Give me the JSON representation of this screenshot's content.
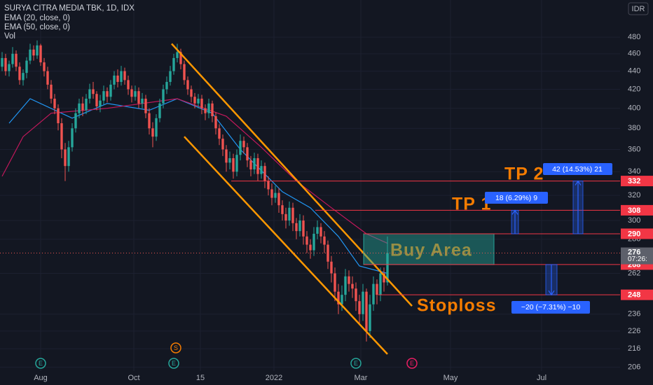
{
  "chart_data": {
    "type": "candlestick",
    "title": "SURYA CITRA MEDIA TBK, 1D, IDX",
    "currency": "IDR",
    "volume_label": "Vol",
    "up_color": "#26a69a",
    "down_color": "#ef5350",
    "log": true,
    "grid": true,
    "xlim": [
      -0.6,
      176.4
    ],
    "xticks": [
      {
        "value": 11,
        "label": "Aug"
      },
      {
        "value": 37.6,
        "label": "Oct"
      },
      {
        "value": 56.6,
        "label": "15"
      },
      {
        "value": 77.6,
        "label": "2022"
      },
      {
        "value": 102.4,
        "label": "Mar"
      },
      {
        "value": 128,
        "label": "May"
      },
      {
        "value": 154,
        "label": "Jul"
      }
    ],
    "ylim": [
      204,
      528
    ],
    "yticks": [
      206,
      216,
      226,
      236,
      262,
      286,
      300,
      320,
      340,
      360,
      380,
      400,
      420,
      440,
      460,
      480
    ],
    "ohlc": [
      [
        445,
        462,
        440,
        455
      ],
      [
        455,
        460,
        435,
        440
      ],
      [
        440,
        452,
        434,
        448
      ],
      [
        448,
        468,
        444,
        460
      ],
      [
        460,
        464,
        440,
        445
      ],
      [
        445,
        450,
        425,
        430
      ],
      [
        430,
        442,
        424,
        438
      ],
      [
        438,
        456,
        432,
        452
      ],
      [
        452,
        472,
        448,
        465
      ],
      [
        465,
        470,
        452,
        458
      ],
      [
        458,
        476,
        454,
        470
      ],
      [
        470,
        472,
        446,
        450
      ],
      [
        450,
        455,
        434,
        440
      ],
      [
        440,
        445,
        420,
        425
      ],
      [
        425,
        430,
        405,
        410
      ],
      [
        410,
        415,
        394,
        400
      ],
      [
        400,
        404,
        378,
        385
      ],
      [
        385,
        390,
        352,
        360
      ],
      [
        360,
        366,
        332,
        345
      ],
      [
        345,
        368,
        340,
        362
      ],
      [
        362,
        385,
        358,
        380
      ],
      [
        380,
        400,
        376,
        395
      ],
      [
        395,
        410,
        390,
        405
      ],
      [
        405,
        412,
        392,
        398
      ],
      [
        398,
        415,
        394,
        410
      ],
      [
        410,
        426,
        405,
        420
      ],
      [
        420,
        428,
        410,
        415
      ],
      [
        415,
        418,
        398,
        402
      ],
      [
        402,
        414,
        396,
        408
      ],
      [
        408,
        424,
        404,
        418
      ],
      [
        418,
        422,
        406,
        412
      ],
      [
        412,
        430,
        408,
        425
      ],
      [
        425,
        440,
        420,
        435
      ],
      [
        435,
        442,
        422,
        428
      ],
      [
        428,
        446,
        424,
        440
      ],
      [
        440,
        444,
        425,
        430
      ],
      [
        430,
        435,
        414,
        420
      ],
      [
        420,
        424,
        406,
        412
      ],
      [
        412,
        424,
        408,
        418
      ],
      [
        418,
        422,
        400,
        405
      ],
      [
        405,
        416,
        400,
        410
      ],
      [
        410,
        414,
        390,
        395
      ],
      [
        395,
        400,
        374,
        380
      ],
      [
        380,
        386,
        362,
        372
      ],
      [
        372,
        394,
        368,
        390
      ],
      [
        390,
        410,
        386,
        405
      ],
      [
        405,
        425,
        400,
        420
      ],
      [
        420,
        434,
        415,
        428
      ],
      [
        428,
        446,
        424,
        440
      ],
      [
        440,
        460,
        436,
        455
      ],
      [
        455,
        472,
        450,
        462
      ],
      [
        462,
        466,
        442,
        448
      ],
      [
        448,
        452,
        425,
        430
      ],
      [
        430,
        434,
        414,
        420
      ],
      [
        420,
        424,
        406,
        412
      ],
      [
        412,
        416,
        400,
        405
      ],
      [
        405,
        415,
        400,
        410
      ],
      [
        410,
        414,
        394,
        400
      ],
      [
        400,
        404,
        388,
        395
      ],
      [
        395,
        410,
        390,
        405
      ],
      [
        405,
        408,
        386,
        392
      ],
      [
        392,
        396,
        374,
        380
      ],
      [
        380,
        384,
        364,
        370
      ],
      [
        370,
        374,
        354,
        360
      ],
      [
        360,
        364,
        340,
        348
      ],
      [
        348,
        358,
        342,
        352
      ],
      [
        352,
        356,
        334,
        340
      ],
      [
        340,
        360,
        336,
        355
      ],
      [
        355,
        374,
        350,
        368
      ],
      [
        368,
        372,
        356,
        362
      ],
      [
        362,
        366,
        344,
        350
      ],
      [
        350,
        354,
        336,
        342
      ],
      [
        342,
        357,
        338,
        352
      ],
      [
        352,
        356,
        332,
        338
      ],
      [
        338,
        350,
        334,
        345
      ],
      [
        345,
        348,
        326,
        332
      ],
      [
        332,
        336,
        320,
        325
      ],
      [
        325,
        330,
        312,
        318
      ],
      [
        318,
        328,
        314,
        322
      ],
      [
        322,
        326,
        306,
        312
      ],
      [
        312,
        316,
        300,
        305
      ],
      [
        305,
        310,
        294,
        300
      ],
      [
        300,
        315,
        296,
        310
      ],
      [
        310,
        314,
        292,
        298
      ],
      [
        298,
        302,
        286,
        292
      ],
      [
        292,
        305,
        288,
        300
      ],
      [
        300,
        304,
        282,
        288
      ],
      [
        288,
        292,
        276,
        282
      ],
      [
        282,
        286,
        272,
        278
      ],
      [
        278,
        295,
        274,
        290
      ],
      [
        290,
        300,
        286,
        295
      ],
      [
        295,
        298,
        283,
        288
      ],
      [
        288,
        292,
        276,
        282
      ],
      [
        282,
        285,
        265,
        270
      ],
      [
        270,
        274,
        256,
        262
      ],
      [
        262,
        266,
        244,
        250
      ],
      [
        250,
        255,
        236,
        242
      ],
      [
        242,
        254,
        238,
        248
      ],
      [
        248,
        265,
        244,
        260
      ],
      [
        260,
        264,
        250,
        255
      ],
      [
        255,
        260,
        246,
        252
      ],
      [
        252,
        256,
        238,
        244
      ],
      [
        244,
        248,
        230,
        236
      ],
      [
        236,
        255,
        232,
        250
      ],
      [
        250,
        252,
        220,
        226
      ],
      [
        226,
        248,
        222,
        242
      ],
      [
        242,
        260,
        238,
        255
      ],
      [
        255,
        258,
        242,
        248
      ],
      [
        248,
        266,
        244,
        262
      ],
      [
        262,
        266,
        250,
        256
      ],
      [
        256,
        288,
        254,
        276
      ]
    ],
    "series": [
      {
        "name": "EMA (20, close, 0)",
        "color": "#2196f3",
        "x": [
          2,
          8,
          20,
          30,
          42,
          50,
          60,
          68,
          80,
          88,
          96,
          102,
          110
        ],
        "values": [
          385,
          410,
          390,
          405,
          398,
          410,
          395,
          360,
          323,
          310,
          288,
          267,
          262
        ]
      },
      {
        "name": "EMA (50, close, 0)",
        "color": "#c2185b",
        "x": [
          0,
          6,
          14,
          30,
          50,
          64,
          74,
          84,
          94,
          104,
          110
        ],
        "values": [
          336,
          372,
          395,
          400,
          410,
          392,
          362,
          332,
          310,
          290,
          283
        ]
      }
    ],
    "trendline_color": "#ff9800",
    "trendlines": [
      {
        "x": [
          48.4,
          117
        ],
        "values": [
          472,
          241
        ]
      },
      {
        "x": [
          52,
          110
        ],
        "values": [
          372,
          213
        ]
      }
    ],
    "level_color": "#f23645",
    "levels": [
      332,
      308,
      290,
      268,
      248
    ],
    "last": 276,
    "countdown": "07:26:",
    "annotations": {
      "buy": "Buy Area",
      "tp1": "TP 1",
      "tp2": "TP 2",
      "stop": "Stoploss",
      "m1": "18 (6.29%) 9",
      "m2": "42 (14.53%) 21",
      "m3": "−20 (−7.31%) −10"
    },
    "events": [
      {
        "x": 11,
        "label": "E",
        "color": "#26a69a"
      },
      {
        "x": 49,
        "label": "E",
        "color": "#26a69a"
      },
      {
        "x": 49.6,
        "label": "S",
        "color": "#f57c00"
      },
      {
        "x": 101,
        "label": "E",
        "color": "#26a69a"
      },
      {
        "x": 117,
        "label": "E",
        "color": "#e91e63"
      }
    ]
  }
}
